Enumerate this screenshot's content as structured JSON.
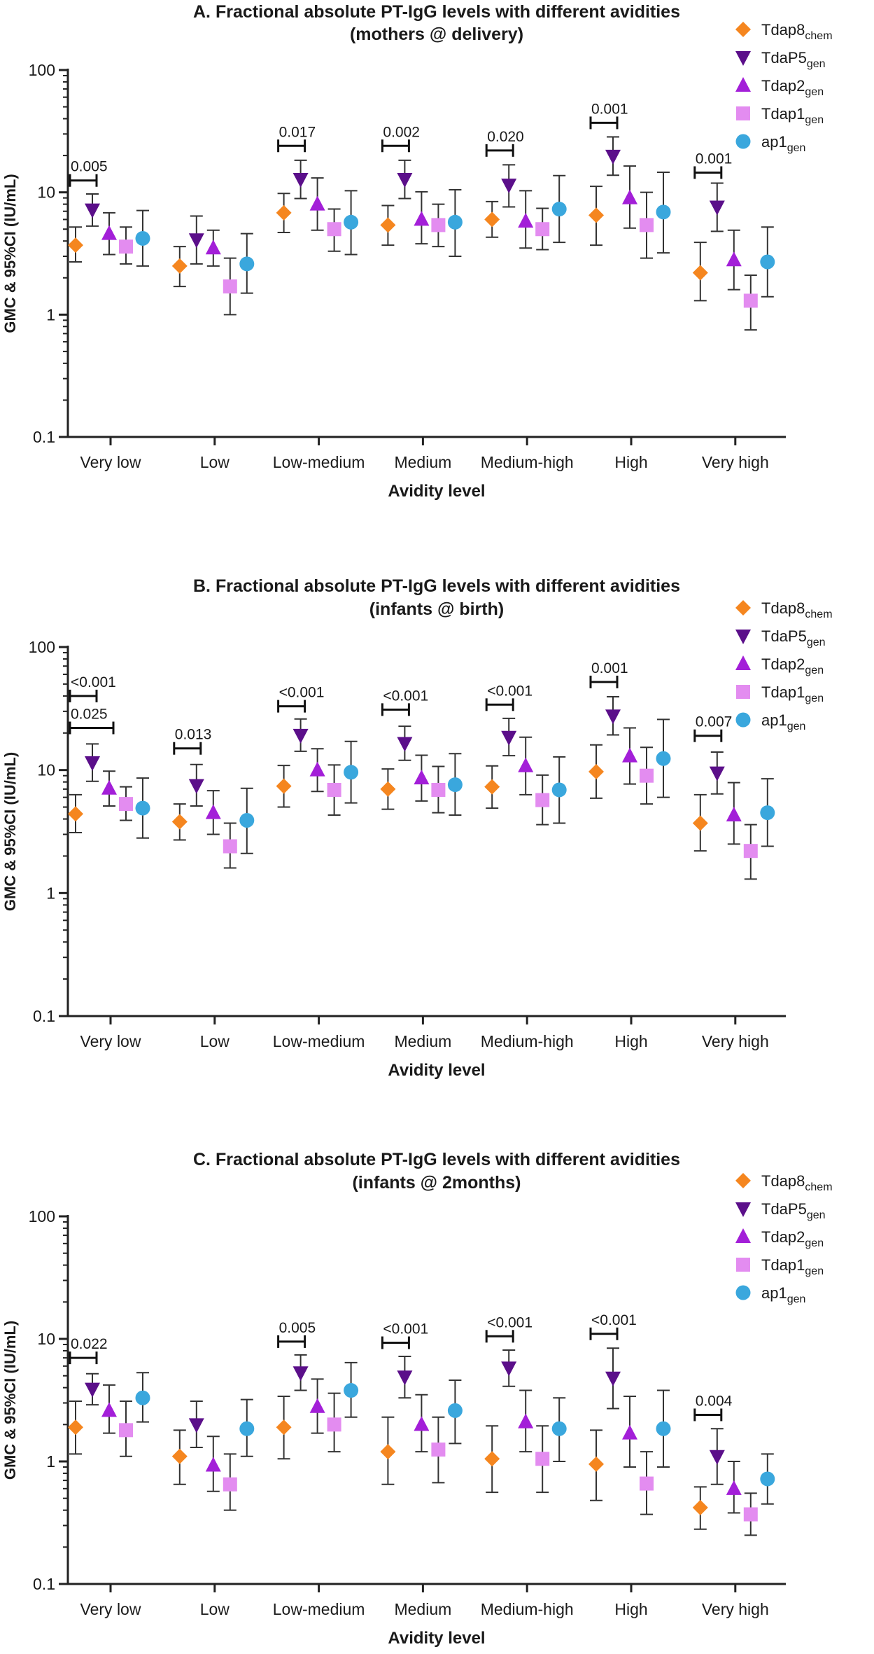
{
  "colors": {
    "Tdap8": "#f5861f",
    "TdaP5": "#5b0f8a",
    "Tdap2": "#a31fd8",
    "Tdap1": "#e38cf0",
    "ap1": "#3aa7dd",
    "axis": "#222222",
    "whisker": "#333333"
  },
  "legend": [
    {
      "key": "Tdap8",
      "main": "Tdap8",
      "sub": "chem",
      "icon": "diamond-icon"
    },
    {
      "key": "TdaP5",
      "main": "TdaP5",
      "sub": "gen",
      "icon": "triangle-down-icon"
    },
    {
      "key": "Tdap2",
      "main": "Tdap2",
      "sub": "gen",
      "icon": "triangle-up-icon"
    },
    {
      "key": "Tdap1",
      "main": "Tdap1",
      "sub": "gen",
      "icon": "square-icon"
    },
    {
      "key": "ap1",
      "main": "ap1",
      "sub": "gen",
      "icon": "circle-icon"
    }
  ],
  "chart_data": [
    {
      "type": "scatter",
      "id": "A",
      "title_line1": "A. Fractional absolute PT-IgG levels with different avidities",
      "title_line2": "(mothers @ delivery)",
      "xlabel": "Avidity level",
      "ylabel": "GMC & 95%CI (IU/mL)",
      "yscale": "log",
      "ylim": [
        0.1,
        100
      ],
      "yticks": [
        "0.1",
        "1",
        "10",
        "100"
      ],
      "categories": [
        "Very low",
        "Low",
        "Low-medium",
        "Medium",
        "Medium-high",
        "High",
        "Very high"
      ],
      "series": [
        {
          "name": "Tdap8",
          "values": [
            3.7,
            2.5,
            6.8,
            5.4,
            6.0,
            6.5,
            2.2
          ],
          "lower": [
            2.7,
            1.7,
            4.7,
            3.7,
            4.3,
            3.7,
            1.3
          ],
          "upper": [
            5.2,
            3.6,
            9.8,
            7.8,
            8.4,
            11.2,
            3.9
          ]
        },
        {
          "name": "TdaP5",
          "values": [
            7.2,
            4.1,
            12.8,
            12.8,
            11.5,
            19.8,
            7.6
          ],
          "lower": [
            5.3,
            2.6,
            8.9,
            8.9,
            7.6,
            13.8,
            4.8
          ],
          "upper": [
            9.7,
            6.4,
            18.3,
            18.3,
            16.8,
            28.4,
            11.9
          ]
        },
        {
          "name": "Tdap2",
          "values": [
            4.6,
            3.5,
            8.0,
            6.0,
            5.8,
            9.0,
            2.8
          ],
          "lower": [
            3.1,
            2.5,
            4.9,
            3.8,
            3.5,
            5.1,
            1.6
          ],
          "upper": [
            6.8,
            4.9,
            13.1,
            10.1,
            10.3,
            16.4,
            4.9
          ]
        },
        {
          "name": "Tdap1",
          "values": [
            3.6,
            1.7,
            5.0,
            5.4,
            5.0,
            5.4,
            1.3
          ],
          "lower": [
            2.6,
            1.0,
            3.3,
            3.6,
            3.4,
            2.9,
            0.75
          ],
          "upper": [
            5.2,
            2.9,
            7.3,
            8.0,
            7.4,
            10.0,
            2.1
          ]
        },
        {
          "name": "ap1",
          "values": [
            4.2,
            2.6,
            5.7,
            5.7,
            7.3,
            6.9,
            2.7
          ],
          "lower": [
            2.5,
            1.5,
            3.1,
            3.0,
            3.9,
            3.2,
            1.4
          ],
          "upper": [
            7.1,
            4.6,
            10.3,
            10.5,
            13.7,
            14.6,
            5.2
          ]
        }
      ],
      "annotations": [
        {
          "category": 0,
          "label": "0.005",
          "y": 12.5
        },
        {
          "category": 2,
          "label": "0.017",
          "y": 24
        },
        {
          "category": 3,
          "label": "0.002",
          "y": 24
        },
        {
          "category": 4,
          "label": "0.020",
          "y": 22
        },
        {
          "category": 5,
          "label": "0.001",
          "y": 37
        },
        {
          "category": 6,
          "label": "0.001",
          "y": 14.5
        }
      ]
    },
    {
      "type": "scatter",
      "id": "B",
      "title_line1": "B. Fractional absolute PT-IgG levels with different avidities",
      "title_line2": "(infants @ birth)",
      "xlabel": "Avidity level",
      "ylabel": "GMC & 95%CI (IU/mL)",
      "yscale": "log",
      "ylim": [
        0.1,
        100
      ],
      "yticks": [
        "0.1",
        "1",
        "10",
        "100"
      ],
      "categories": [
        "Very low",
        "Low",
        "Low-medium",
        "Medium",
        "Medium-high",
        "High",
        "Very high"
      ],
      "series": [
        {
          "name": "Tdap8",
          "values": [
            4.4,
            3.8,
            7.4,
            7.0,
            7.3,
            9.7,
            3.7
          ],
          "lower": [
            3.1,
            2.7,
            5.0,
            4.8,
            4.9,
            5.9,
            2.2
          ],
          "upper": [
            6.3,
            5.3,
            10.9,
            10.2,
            10.8,
            16.0,
            6.3
          ]
        },
        {
          "name": "TdaP5",
          "values": [
            11.5,
            7.5,
            19.2,
            16.5,
            18.5,
            27.6,
            9.5
          ],
          "lower": [
            8.1,
            5.1,
            14.2,
            12.0,
            13.1,
            19.3,
            6.4
          ],
          "upper": [
            16.3,
            11.1,
            26.0,
            22.7,
            26.3,
            39.4,
            14.0
          ]
        },
        {
          "name": "Tdap2",
          "values": [
            7.1,
            4.5,
            10.0,
            8.6,
            10.8,
            13.0,
            4.3
          ],
          "lower": [
            5.1,
            3.0,
            6.7,
            5.6,
            6.3,
            7.7,
            2.5
          ],
          "upper": [
            9.8,
            6.8,
            14.9,
            13.2,
            18.5,
            22.0,
            7.9
          ]
        },
        {
          "name": "Tdap1",
          "values": [
            5.3,
            2.4,
            6.9,
            6.9,
            5.7,
            9.0,
            2.2
          ],
          "lower": [
            3.9,
            1.6,
            4.3,
            4.5,
            3.6,
            5.3,
            1.3
          ],
          "upper": [
            7.3,
            3.7,
            11.0,
            10.7,
            9.1,
            15.3,
            3.6
          ]
        },
        {
          "name": "ap1",
          "values": [
            4.9,
            3.9,
            9.6,
            7.6,
            6.9,
            12.4,
            4.5
          ],
          "lower": [
            2.8,
            2.1,
            5.4,
            4.3,
            3.7,
            6.0,
            2.4
          ],
          "upper": [
            8.6,
            7.1,
            17.1,
            13.6,
            12.8,
            25.8,
            8.5
          ]
        }
      ],
      "annotations": [
        {
          "category": 0,
          "label": "<0.001",
          "y": 40
        },
        {
          "category": 0,
          "label": "0.025",
          "y": 22,
          "wide": true
        },
        {
          "category": 1,
          "label": "0.013",
          "y": 15
        },
        {
          "category": 2,
          "label": "<0.001",
          "y": 33
        },
        {
          "category": 3,
          "label": "<0.001",
          "y": 31
        },
        {
          "category": 4,
          "label": "<0.001",
          "y": 34
        },
        {
          "category": 5,
          "label": "0.001",
          "y": 52
        },
        {
          "category": 6,
          "label": "0.007",
          "y": 19
        }
      ]
    },
    {
      "type": "scatter",
      "id": "C",
      "title_line1": "C. Fractional absolute PT-IgG levels with different avidities",
      "title_line2": "(infants @ 2months)",
      "xlabel": "Avidity level",
      "ylabel": "GMC & 95%CI (IU/mL)",
      "yscale": "log",
      "ylim": [
        0.1,
        100
      ],
      "yticks": [
        "0.1",
        "1",
        "10",
        "100"
      ],
      "categories": [
        "Very low",
        "Low",
        "Low-medium",
        "Medium",
        "Medium-high",
        "High",
        "Very high"
      ],
      "series": [
        {
          "name": "Tdap8",
          "values": [
            1.9,
            1.1,
            1.9,
            1.2,
            1.05,
            0.95,
            0.42
          ],
          "lower": [
            1.15,
            0.65,
            1.05,
            0.65,
            0.56,
            0.48,
            0.28
          ],
          "upper": [
            3.1,
            1.8,
            3.4,
            2.3,
            1.95,
            1.8,
            0.62
          ]
        },
        {
          "name": "TdaP5",
          "values": [
            3.9,
            2.0,
            5.3,
            4.9,
            5.8,
            4.8,
            1.1
          ],
          "lower": [
            2.9,
            1.3,
            3.8,
            3.3,
            4.1,
            2.7,
            0.65
          ],
          "upper": [
            5.2,
            3.1,
            7.4,
            7.2,
            8.1,
            8.4,
            1.85
          ]
        },
        {
          "name": "Tdap2",
          "values": [
            2.6,
            0.93,
            2.8,
            2.0,
            2.1,
            1.7,
            0.6
          ],
          "lower": [
            1.7,
            0.57,
            1.7,
            1.2,
            1.2,
            0.9,
            0.38
          ],
          "upper": [
            4.2,
            1.6,
            4.7,
            3.5,
            3.8,
            3.4,
            1.0
          ]
        },
        {
          "name": "Tdap1",
          "values": [
            1.8,
            0.65,
            2.0,
            1.25,
            1.05,
            0.66,
            0.37
          ],
          "lower": [
            1.1,
            0.4,
            1.2,
            0.67,
            0.56,
            0.37,
            0.25
          ],
          "upper": [
            3.1,
            1.15,
            3.6,
            2.3,
            1.95,
            1.2,
            0.55
          ]
        },
        {
          "name": "ap1",
          "values": [
            3.3,
            1.85,
            3.8,
            2.6,
            1.85,
            1.85,
            0.72
          ],
          "lower": [
            2.1,
            1.1,
            2.3,
            1.4,
            1.0,
            0.9,
            0.45
          ],
          "upper": [
            5.3,
            3.2,
            6.4,
            4.6,
            3.3,
            3.8,
            1.15
          ]
        }
      ],
      "annotations": [
        {
          "category": 0,
          "label": "0.022",
          "y": 7.0
        },
        {
          "category": 2,
          "label": "0.005",
          "y": 9.5
        },
        {
          "category": 3,
          "label": "<0.001",
          "y": 9.3
        },
        {
          "category": 4,
          "label": "<0.001",
          "y": 10.5
        },
        {
          "category": 5,
          "label": "<0.001",
          "y": 11.0
        },
        {
          "category": 6,
          "label": "0.004",
          "y": 2.4
        }
      ]
    }
  ]
}
